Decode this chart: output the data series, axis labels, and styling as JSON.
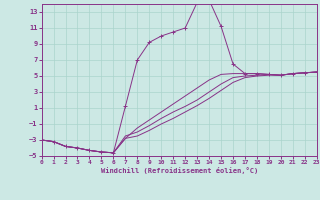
{
  "xlabel": "Windchill (Refroidissement éolien,°C)",
  "bg_color": "#cce8e4",
  "line_color": "#883388",
  "grid_color": "#aad4cc",
  "xlim": [
    0,
    23
  ],
  "ylim": [
    -5,
    14
  ],
  "xticks": [
    0,
    1,
    2,
    3,
    4,
    5,
    6,
    7,
    8,
    9,
    10,
    11,
    12,
    13,
    14,
    15,
    16,
    17,
    18,
    19,
    20,
    21,
    22,
    23
  ],
  "yticks": [
    -5,
    -3,
    -1,
    1,
    3,
    5,
    7,
    9,
    11,
    13
  ],
  "curve1_x": [
    0,
    1,
    2,
    3,
    4,
    5,
    6,
    7,
    8,
    9,
    10,
    11,
    12,
    13,
    14,
    15,
    16,
    17,
    18,
    19,
    20,
    21,
    22,
    23
  ],
  "curve1_y": [
    -3.0,
    -3.2,
    -3.8,
    -4.0,
    -4.3,
    -4.5,
    -4.6,
    1.2,
    7.0,
    9.2,
    10.0,
    10.5,
    11.0,
    14.2,
    14.5,
    11.2,
    6.5,
    5.3,
    5.3,
    5.2,
    5.1,
    5.3,
    5.4,
    5.5
  ],
  "curve2_x": [
    0,
    1,
    2,
    3,
    4,
    5,
    6,
    7,
    8,
    9,
    10,
    11,
    12,
    13,
    14,
    15,
    16,
    17,
    18,
    19,
    20,
    21,
    22,
    23
  ],
  "curve2_y": [
    -3.0,
    -3.2,
    -3.8,
    -4.0,
    -4.3,
    -4.5,
    -4.6,
    -2.8,
    -2.5,
    -1.8,
    -1.0,
    -0.3,
    0.5,
    1.3,
    2.2,
    3.2,
    4.2,
    4.8,
    5.0,
    5.1,
    5.1,
    5.3,
    5.4,
    5.5
  ],
  "curve3_x": [
    0,
    1,
    2,
    3,
    4,
    5,
    6,
    7,
    8,
    9,
    10,
    11,
    12,
    13,
    14,
    15,
    16,
    17,
    18,
    19,
    20,
    21,
    22,
    23
  ],
  "curve3_y": [
    -3.0,
    -3.2,
    -3.8,
    -4.0,
    -4.3,
    -4.5,
    -4.6,
    -2.5,
    -2.0,
    -1.2,
    -0.3,
    0.5,
    1.2,
    2.0,
    3.0,
    4.0,
    4.8,
    5.0,
    5.1,
    5.2,
    5.1,
    5.3,
    5.4,
    5.5
  ],
  "curve4_x": [
    0,
    1,
    2,
    3,
    4,
    5,
    6,
    7,
    8,
    9,
    10,
    11,
    12,
    13,
    14,
    15,
    16,
    17,
    18,
    19,
    20,
    21,
    22,
    23
  ],
  "curve4_y": [
    -3.0,
    -3.2,
    -3.8,
    -4.0,
    -4.3,
    -4.5,
    -4.6,
    -2.8,
    -1.5,
    -0.5,
    0.5,
    1.5,
    2.5,
    3.5,
    4.5,
    5.2,
    5.3,
    5.3,
    5.3,
    5.2,
    5.1,
    5.3,
    5.4,
    5.5
  ]
}
